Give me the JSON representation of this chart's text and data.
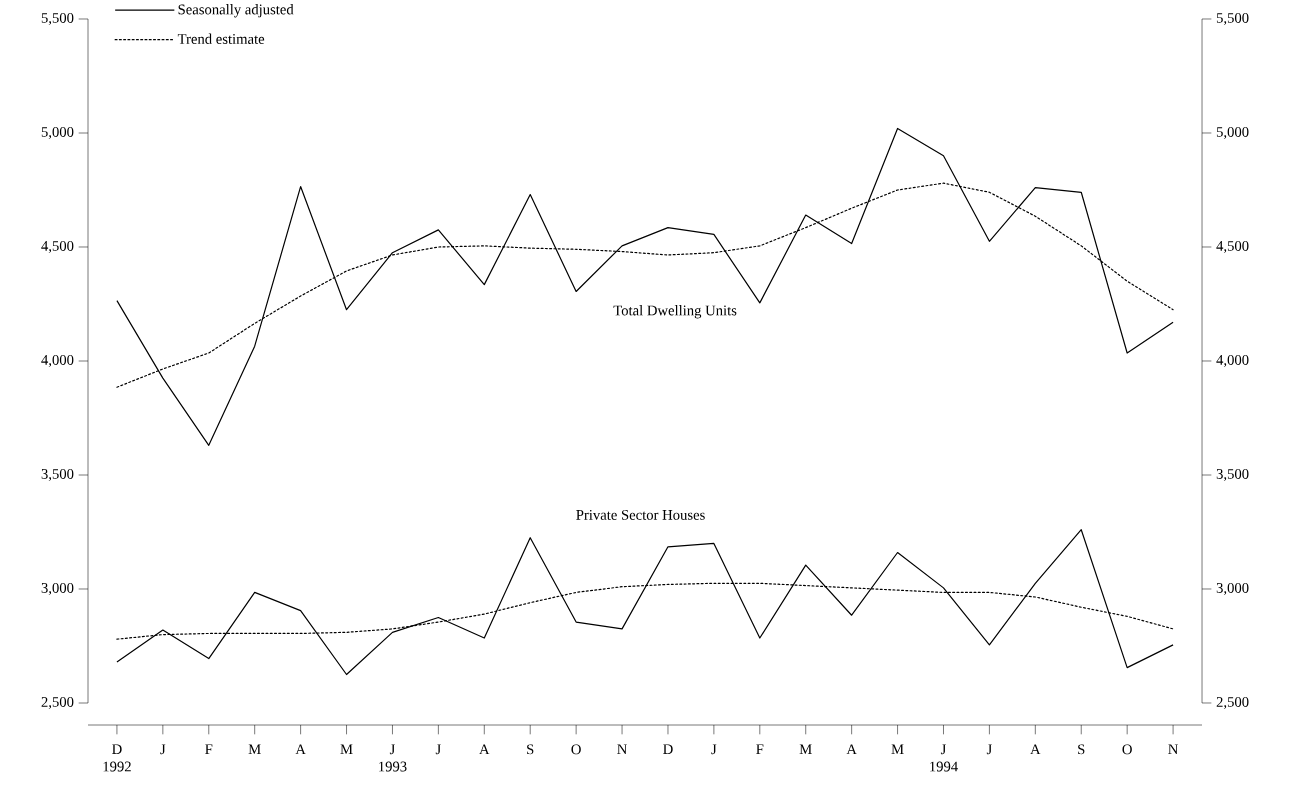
{
  "chart_data": {
    "type": "line",
    "categories": [
      "D 1992",
      "J",
      "F",
      "M",
      "A",
      "M",
      "J 1993",
      "J",
      "A",
      "S",
      "O",
      "N",
      "D",
      "J",
      "F",
      "M",
      "A",
      "M",
      "J 1994",
      "J",
      "A",
      "S",
      "O",
      "N"
    ],
    "series": [
      {
        "name": "Seasonally adjusted",
        "color": "#000000",
        "line_style": "solid",
        "values": [
          4265,
          3925,
          3630,
          4065,
          4765,
          4225,
          4475,
          4575,
          4335,
          4730,
          4305,
          4505,
          4585,
          4555,
          4255,
          4640,
          4515,
          5020,
          4900,
          4525,
          4760,
          4740,
          4035,
          4170
        ]
      },
      {
        "name": "Trend estimate",
        "color": "#000000",
        "line_style": "dotted",
        "values": [
          3885,
          3965,
          4035,
          4165,
          4285,
          4395,
          4465,
          4500,
          4505,
          4495,
          4490,
          4480,
          4465,
          4475,
          4505,
          4585,
          4670,
          4750,
          4780,
          4740,
          4635,
          4505,
          4350,
          4225
        ]
      },
      {
        "color": "#000000",
        "line_style": "solid",
        "values": [
          2680,
          2820,
          2695,
          2985,
          2905,
          2625,
          2810,
          2875,
          2785,
          3225,
          2855,
          2825,
          3185,
          3200,
          2785,
          3105,
          2885,
          3160,
          3005,
          2755,
          3025,
          3260,
          2655,
          2755
        ]
      },
      {
        "color": "#000000",
        "line_style": "dotted",
        "values": [
          2780,
          2800,
          2805,
          2805,
          2805,
          2810,
          2825,
          2855,
          2890,
          2940,
          2985,
          3010,
          3020,
          3025,
          3025,
          3015,
          3005,
          2995,
          2985,
          2985,
          2965,
          2920,
          2880,
          2825
        ]
      }
    ],
    "ylim": [
      2500,
      5500
    ],
    "yticks": [
      {
        "value": 2500,
        "label": "2,500"
      },
      {
        "value": 3000,
        "label": "3,000"
      },
      {
        "value": 3500,
        "label": "3,500"
      },
      {
        "value": 4000,
        "label": "4,000"
      },
      {
        "value": 4500,
        "label": "4,500"
      },
      {
        "value": 5000,
        "label": "5,000"
      },
      {
        "value": 5500,
        "label": "5,500"
      }
    ],
    "y2lim": [
      2500,
      5500
    ],
    "y2ticks": [
      {
        "value": 2500,
        "label": "2,500"
      },
      {
        "value": 3000,
        "label": "3,000"
      },
      {
        "value": 3500,
        "label": "3,500"
      },
      {
        "value": 4000,
        "label": "4,000"
      },
      {
        "value": 4500,
        "label": "4,500"
      },
      {
        "value": 5000,
        "label": "5,000"
      },
      {
        "value": 5500,
        "label": "5,500"
      }
    ],
    "legend": "top left",
    "annotations": [
      "Total Dwelling Units",
      "Private Sector Houses"
    ]
  }
}
